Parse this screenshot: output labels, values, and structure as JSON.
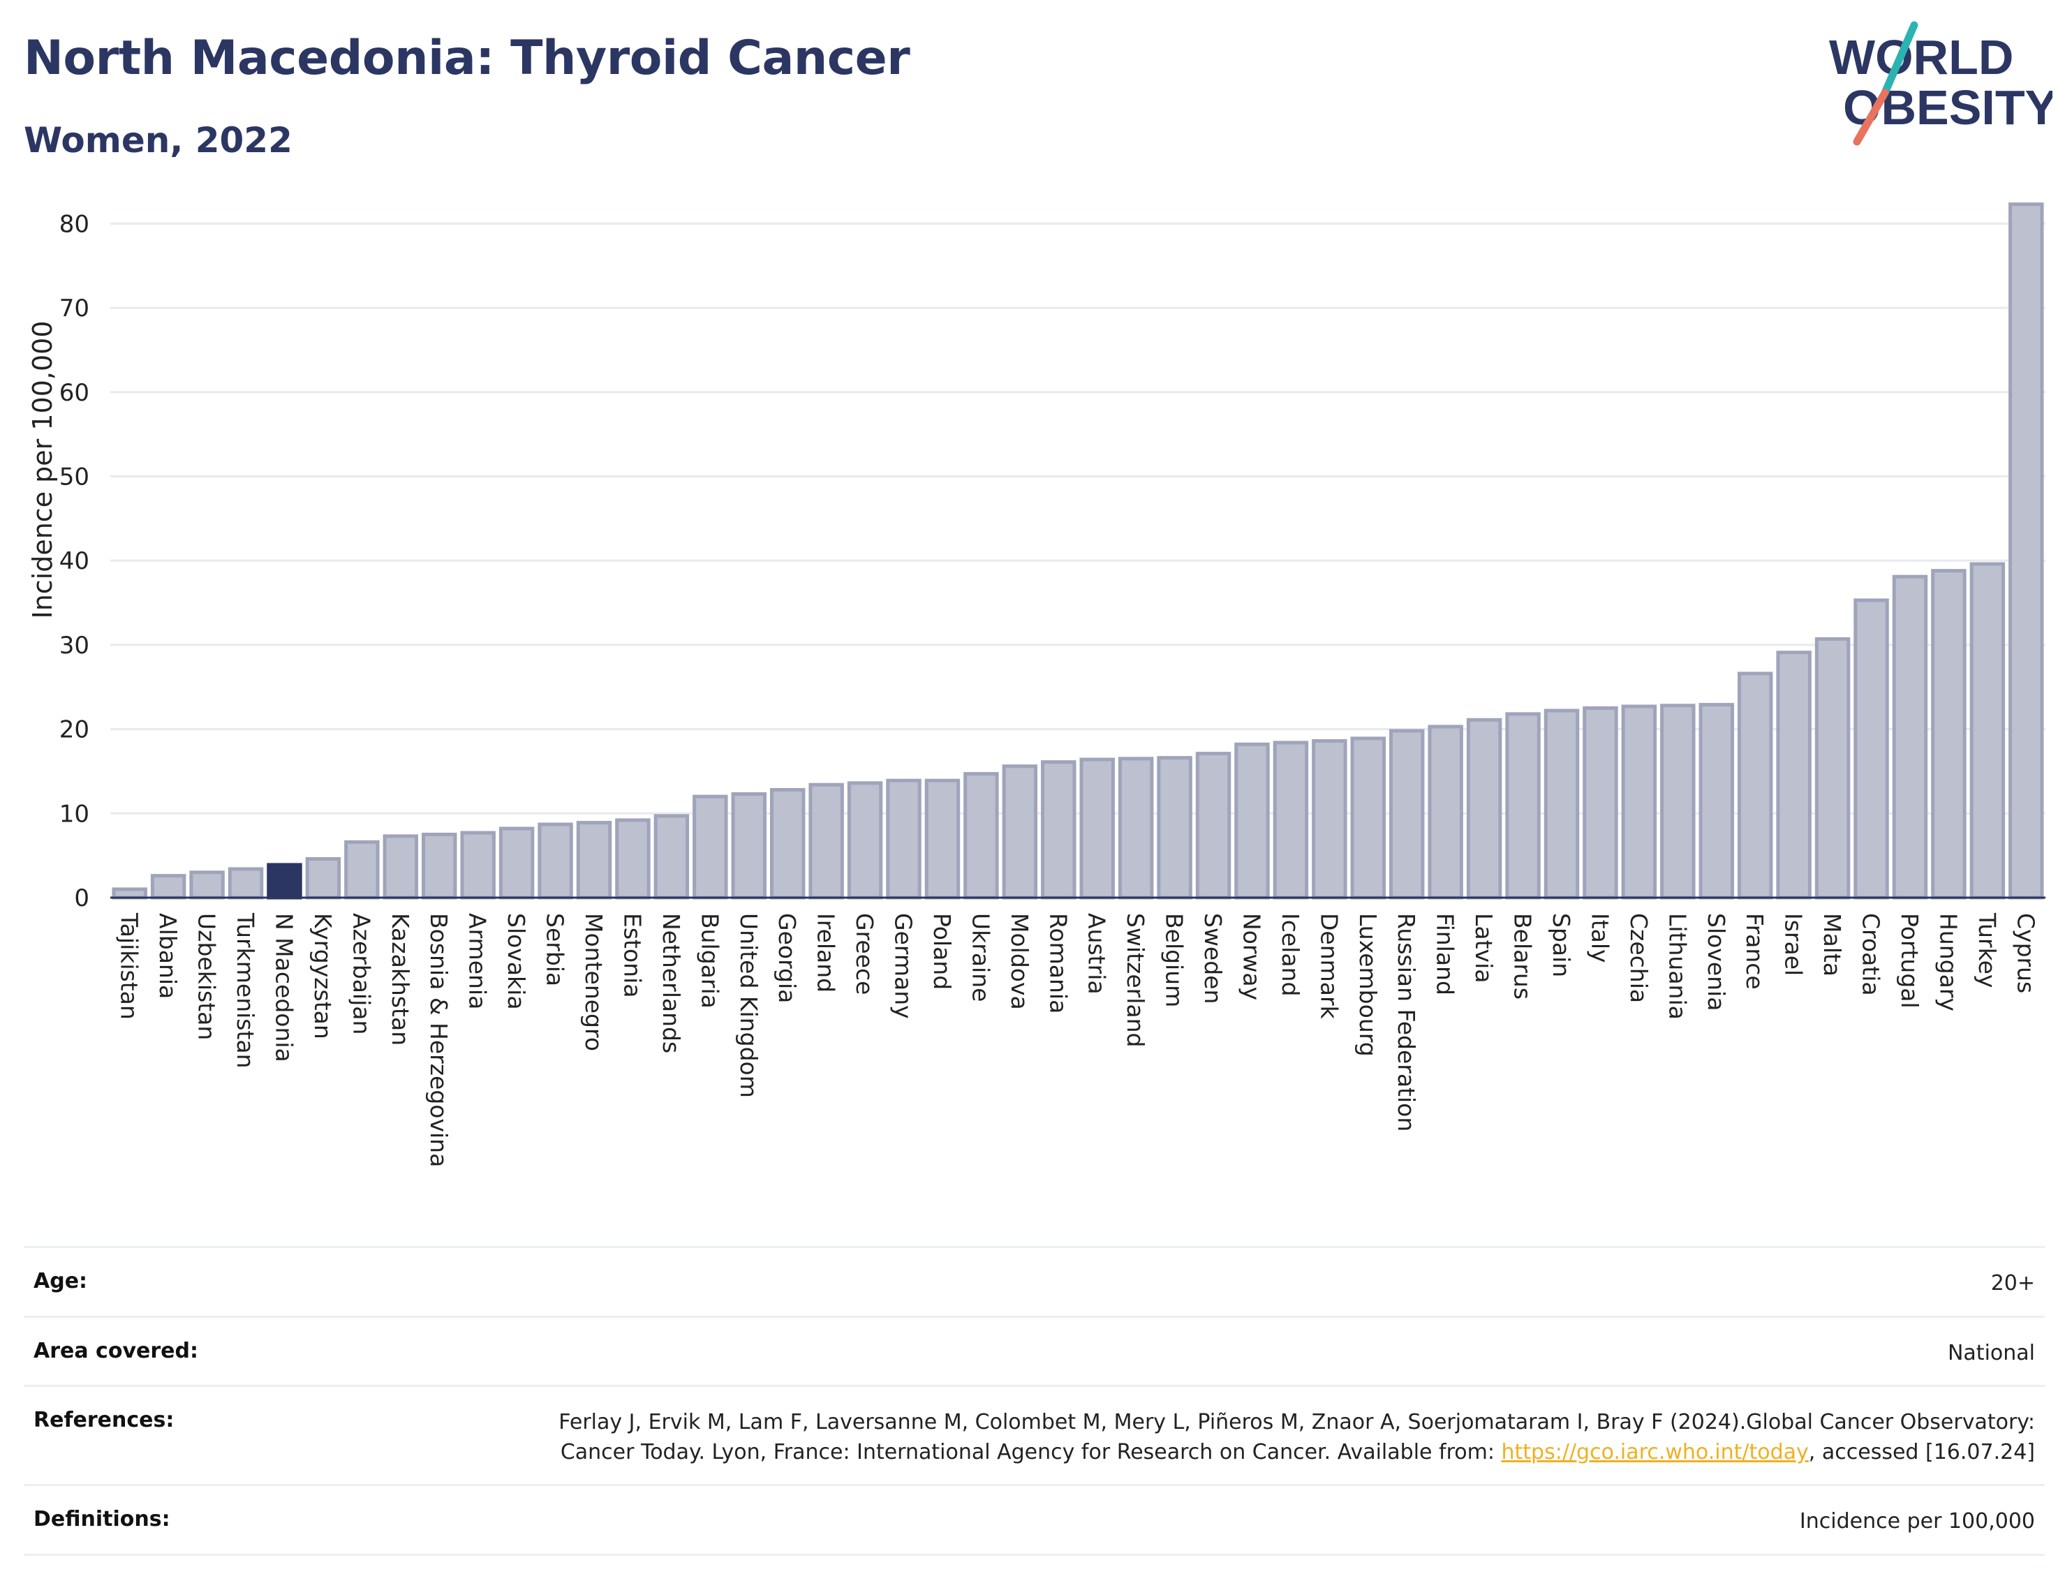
{
  "header": {
    "title": "North Macedonia: Thyroid Cancer",
    "subtitle": "Women, 2022"
  },
  "logo": {
    "line1": "WORLD",
    "line2": "OBESITY"
  },
  "colors": {
    "title": "#2b3663",
    "bar_fill": "#bcc0cf",
    "bar_stroke": "#9fa4bb",
    "highlight": "#2b3663",
    "grid": "#e8eaef",
    "logo_teal": "#2bb3b1",
    "logo_coral": "#e8735f",
    "link": "#f0b020"
  },
  "chart_data": {
    "type": "bar",
    "ylabel": "Incidence per 100,000",
    "xlabel": "",
    "ylim": [
      0,
      85
    ],
    "yticks": [
      0,
      10,
      20,
      30,
      40,
      50,
      60,
      70,
      80
    ],
    "grid": true,
    "highlight_category": "N Macedonia",
    "categories": [
      "Tajikistan",
      "Albania",
      "Uzbekistan",
      "Turkmenistan",
      "N Macedonia",
      "Kyrgyzstan",
      "Azerbaijan",
      "Kazakhstan",
      "Bosnia & Herzegovina",
      "Armenia",
      "Slovakia",
      "Serbia",
      "Montenegro",
      "Estonia",
      "Netherlands",
      "Bulgaria",
      "United Kingdom",
      "Georgia",
      "Ireland",
      "Greece",
      "Germany",
      "Poland",
      "Ukraine",
      "Moldova",
      "Romania",
      "Austria",
      "Switzerland",
      "Belgium",
      "Sweden",
      "Norway",
      "Iceland",
      "Denmark",
      "Luxembourg",
      "Russian Federation",
      "Finland",
      "Latvia",
      "Belarus",
      "Spain",
      "Italy",
      "Czechia",
      "Lithuania",
      "Slovenia",
      "France",
      "Israel",
      "Malta",
      "Croatia",
      "Portugal",
      "Hungary",
      "Turkey",
      "Cyprus"
    ],
    "values": [
      1.0,
      2.6,
      3.0,
      3.4,
      3.9,
      4.6,
      6.6,
      7.3,
      7.5,
      7.7,
      8.2,
      8.7,
      8.9,
      9.2,
      9.7,
      12.0,
      12.3,
      12.8,
      13.4,
      13.6,
      13.9,
      13.9,
      14.7,
      15.6,
      16.1,
      16.4,
      16.5,
      16.6,
      17.1,
      18.2,
      18.4,
      18.6,
      18.9,
      19.8,
      20.3,
      21.1,
      21.8,
      22.2,
      22.5,
      22.7,
      22.8,
      22.9,
      26.6,
      29.1,
      30.7,
      35.3,
      38.1,
      38.8,
      39.6,
      82.3
    ]
  },
  "meta": {
    "age_label": "Age:",
    "age_value": "20+",
    "area_label": "Area covered:",
    "area_value": "National",
    "references_label": "References:",
    "references_text": "Ferlay J, Ervik M, Lam F, Laversanne M, Colombet M, Mery L, Piñeros M, Znaor A, Soerjomataram I, Bray F (2024).Global Cancer Observatory: Cancer Today. Lyon, France: International Agency for Research on Cancer. Available from:",
    "references_link": "https://gco.iarc.who.int/today",
    "references_suffix": ", accessed [16.07.24]",
    "definitions_label": "Definitions:",
    "definitions_value": "Incidence per 100,000"
  }
}
